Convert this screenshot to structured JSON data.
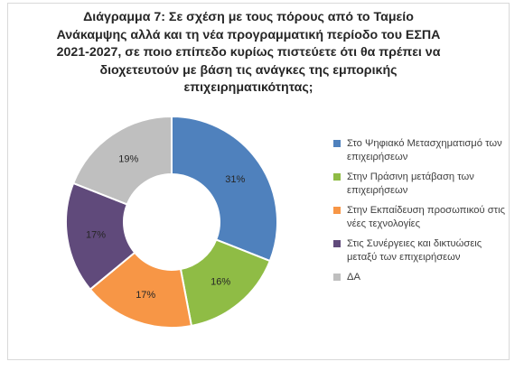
{
  "chart_data": {
    "type": "pie",
    "variant": "donut",
    "title": "Διάγραμμα 7: Σε σχέση με τους πόρους από το Ταμείο Ανάκαμψης αλλά και τη νέα προγραμματική περίοδο του ΕΣΠΑ 2021-2027, σε ποιο επίπεδο κυρίως πιστεύετε ότι θα πρέπει να διοχετευτούν με βάση τις ανάγκες της εμπορικής επιχειρηματικότητας;",
    "categories": [
      "Στο Ψηφιακό Μετασχηματισμό των επιχειρήσεων",
      "Στην Πράσινη μετάβαση των επιχειρήσεων",
      "Στην Εκπαίδευση προσωπικού στις νέες τεχνολογίες",
      "Στις Συνέργειες και δικτυώσεις μεταξύ των επιχειρήσεων",
      "ΔΑ"
    ],
    "values": [
      31,
      16,
      17,
      17,
      19
    ],
    "data_labels": [
      "31%",
      "16%",
      "17%",
      "17%",
      "19%"
    ],
    "unit": "%",
    "colors": [
      "#4f81bd",
      "#8fbc45",
      "#f79646",
      "#604a7b",
      "#bfbfbf"
    ],
    "legend_position": "right"
  }
}
